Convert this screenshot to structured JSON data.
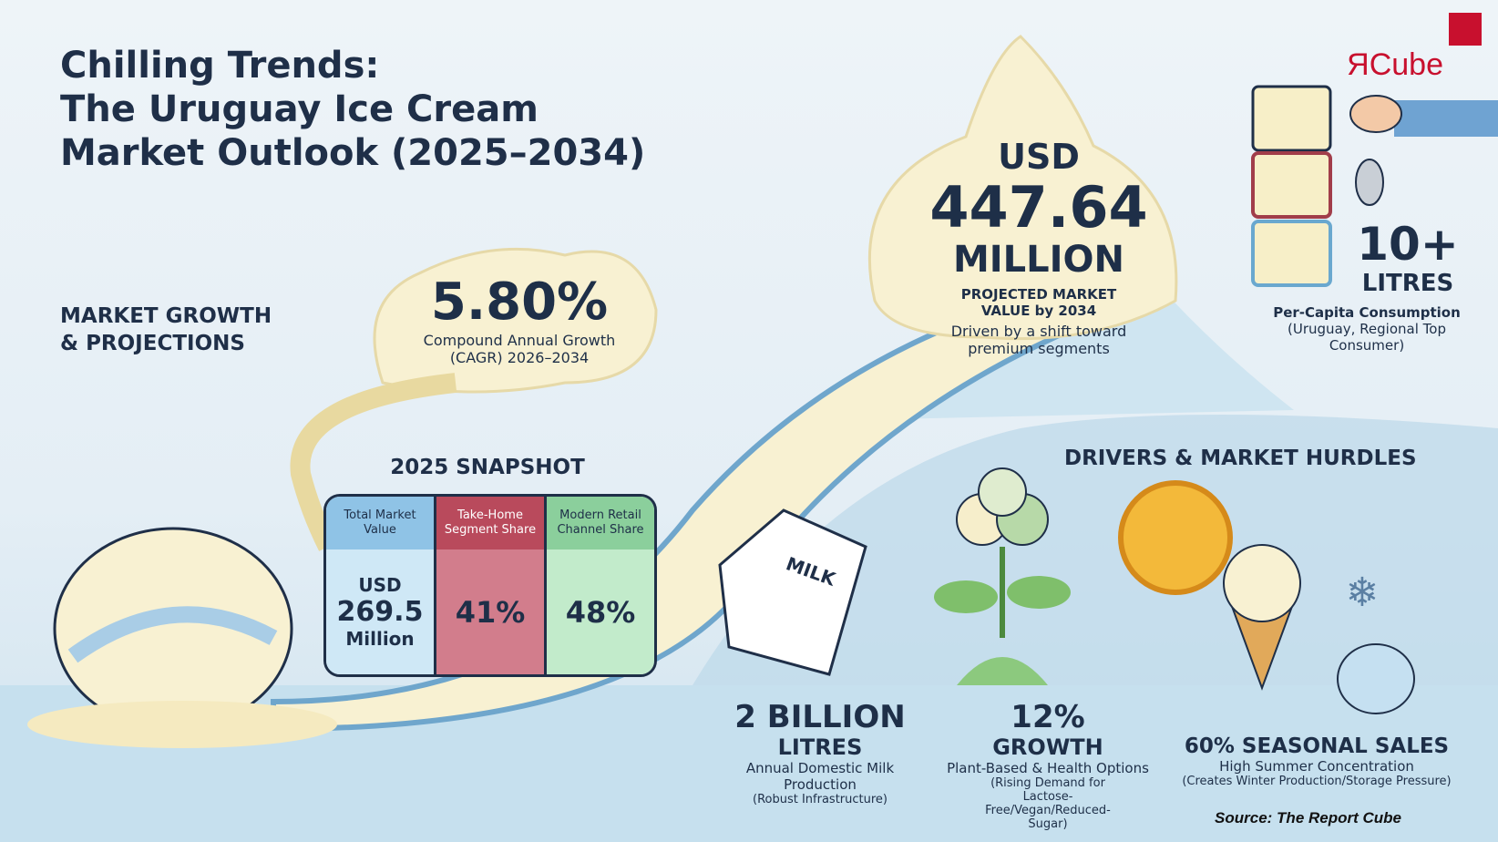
{
  "title": {
    "line1": "Chilling Trends:",
    "line2": "The Uruguay Ice Cream",
    "line3": "Market Outlook (2025–2034)"
  },
  "logo": {
    "text": "ЯCube",
    "color": "#c8102e"
  },
  "growth": {
    "heading_line1": "MARKET GROWTH",
    "heading_line2": "& PROJECTIONS",
    "cagr_value": "5.80%",
    "cagr_label1": "Compound Annual Growth",
    "cagr_label2": "(CAGR) 2026–2034"
  },
  "projection": {
    "currency": "USD",
    "value": "447.64",
    "unit": "MILLION",
    "label1": "PROJECTED MARKET",
    "label2": "VALUE by 2034",
    "note1": "Driven by a shift toward",
    "note2": "premium segments"
  },
  "consumption": {
    "value": "10+",
    "unit": "LITRES",
    "label": "Per-Capita Consumption",
    "note1": "(Uruguay, Regional Top",
    "note2": "Consumer)"
  },
  "snapshot": {
    "heading": "2025 SNAPSHOT",
    "columns": [
      {
        "header": "Total Market Value",
        "line1": "USD",
        "line2": "269.5",
        "line3": "Million",
        "color": "#a9d3ec"
      },
      {
        "header": "Take-Home Segment Share",
        "value": "41%",
        "color": "#c9697b"
      },
      {
        "header": "Modern Retail Channel Share",
        "value": "48%",
        "color": "#a7dfb3"
      }
    ]
  },
  "drivers": {
    "heading": "DRIVERS & MARKET HURDLES",
    "milk_label": "MILK",
    "items": [
      {
        "value": "2 BILLION",
        "unit": "LITRES",
        "label": "Annual Domestic Milk Production",
        "note": "(Robust Infrastructure)"
      },
      {
        "value": "12%",
        "unit": "GROWTH",
        "label": "Plant-Based & Health Options",
        "note": "(Rising Demand for Lactose-Free/Vegan/Reduced-Sugar)"
      },
      {
        "value": "60% SEASONAL SALES",
        "label": "High Summer Concentration",
        "note": "(Creates Winter Production/Storage Pressure)"
      }
    ]
  },
  "source": "Source: The Report Cube"
}
